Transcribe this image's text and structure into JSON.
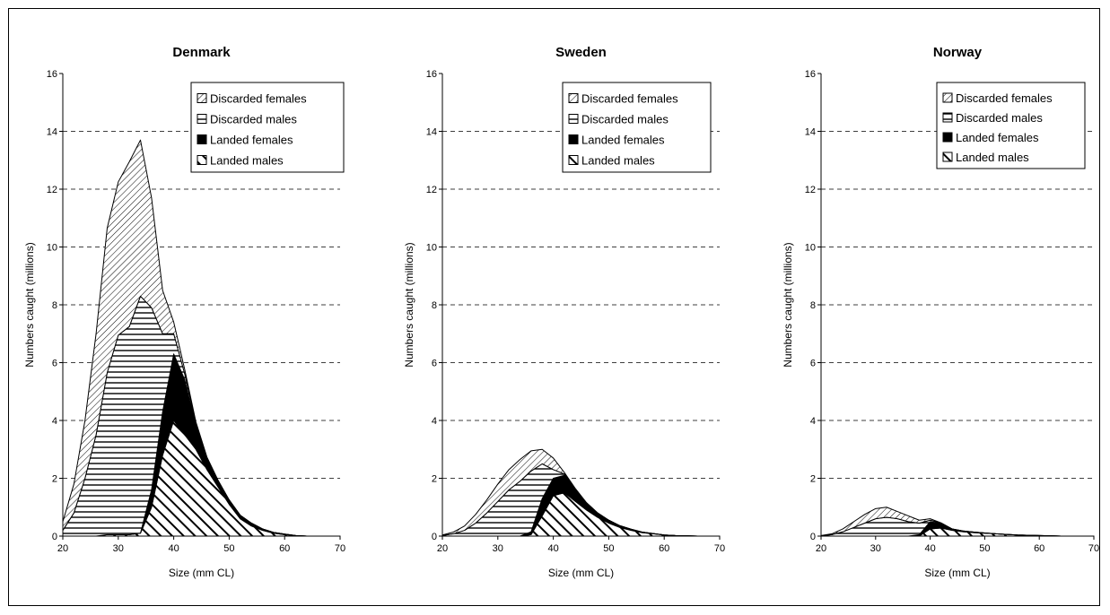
{
  "figure": {
    "colors": {
      "stroke": "#000000",
      "background": "#ffffff"
    }
  },
  "chart_data": [
    {
      "type": "area",
      "stacked": true,
      "title": "Denmark",
      "xlabel": "Size (mm CL)",
      "ylabel": "Numbers caught (millions)",
      "xlim": [
        20,
        70
      ],
      "ylim": [
        0,
        16
      ],
      "xticks": [
        20,
        30,
        40,
        50,
        60,
        70
      ],
      "yticks": [
        0,
        2,
        4,
        6,
        8,
        10,
        12,
        14,
        16
      ],
      "grid": "horizontal-dashed",
      "legend": "top-right",
      "x": [
        20,
        22,
        24,
        26,
        28,
        30,
        32,
        34,
        36,
        38,
        40,
        42,
        44,
        46,
        48,
        50,
        52,
        54,
        56,
        58,
        60,
        62,
        64,
        66,
        68,
        70
      ],
      "series": [
        {
          "name": "Landed males",
          "pattern": "diag-thick",
          "values": [
            0,
            0,
            0,
            0,
            0.05,
            0.05,
            0.05,
            0.1,
            1.0,
            2.8,
            4.0,
            3.5,
            3.0,
            2.3,
            1.7,
            1.1,
            0.6,
            0.35,
            0.2,
            0.1,
            0.05,
            0.02,
            0,
            0,
            0,
            0
          ]
        },
        {
          "name": "Landed females",
          "pattern": "solid",
          "values": [
            0,
            0,
            0,
            0,
            0,
            0,
            0,
            0,
            0.6,
            1.5,
            2.3,
            1.9,
            0.8,
            0.35,
            0.2,
            0.15,
            0.12,
            0.1,
            0.05,
            0.03,
            0.02,
            0,
            0,
            0,
            0,
            0
          ]
        },
        {
          "name": "Discarded males",
          "pattern": "horizontal",
          "values": [
            0.2,
            0.8,
            2.0,
            3.5,
            5.6,
            6.9,
            7.2,
            8.2,
            6.3,
            2.7,
            0.7,
            0.2,
            0.1,
            0.05,
            0.02,
            0,
            0,
            0,
            0,
            0,
            0,
            0,
            0,
            0,
            0,
            0
          ]
        },
        {
          "name": "Discarded females",
          "pattern": "diag-fine",
          "values": [
            0.3,
            1.0,
            2.0,
            3.5,
            5.0,
            5.3,
            5.7,
            5.4,
            3.8,
            1.5,
            0.4,
            0.15,
            0.05,
            0.03,
            0.01,
            0,
            0,
            0,
            0,
            0,
            0,
            0,
            0,
            0,
            0,
            0
          ]
        }
      ]
    },
    {
      "type": "area",
      "stacked": true,
      "title": "Sweden",
      "xlabel": "Size (mm CL)",
      "ylabel": "Numbers caught (millions)",
      "xlim": [
        20,
        70
      ],
      "ylim": [
        0,
        16
      ],
      "xticks": [
        20,
        30,
        40,
        50,
        60,
        70
      ],
      "yticks": [
        0,
        2,
        4,
        6,
        8,
        10,
        12,
        14,
        16
      ],
      "grid": "horizontal-dashed",
      "legend": "top-right",
      "x": [
        20,
        22,
        24,
        26,
        28,
        30,
        32,
        34,
        36,
        38,
        40,
        42,
        44,
        46,
        48,
        50,
        52,
        54,
        56,
        58,
        60,
        62,
        64,
        66,
        68,
        70
      ],
      "series": [
        {
          "name": "Landed males",
          "pattern": "diag-thick",
          "values": [
            0,
            0,
            0,
            0,
            0,
            0,
            0,
            0,
            0.05,
            0.7,
            1.4,
            1.5,
            1.2,
            0.9,
            0.65,
            0.45,
            0.3,
            0.2,
            0.12,
            0.08,
            0.04,
            0.02,
            0.01,
            0,
            0,
            0
          ]
        },
        {
          "name": "Landed females",
          "pattern": "solid",
          "values": [
            0,
            0,
            0,
            0,
            0,
            0,
            0,
            0,
            0.1,
            0.6,
            0.6,
            0.6,
            0.4,
            0.25,
            0.15,
            0.1,
            0.06,
            0.04,
            0.02,
            0.01,
            0,
            0,
            0,
            0,
            0,
            0
          ]
        },
        {
          "name": "Discarded males",
          "pattern": "horizontal",
          "values": [
            0.02,
            0.08,
            0.2,
            0.45,
            0.8,
            1.2,
            1.6,
            1.9,
            2.1,
            1.2,
            0.3,
            0.05,
            0.02,
            0,
            0,
            0,
            0,
            0,
            0,
            0,
            0,
            0,
            0,
            0,
            0,
            0
          ]
        },
        {
          "name": "Discarded females",
          "pattern": "diag-fine",
          "values": [
            0.02,
            0.06,
            0.15,
            0.3,
            0.45,
            0.6,
            0.7,
            0.75,
            0.7,
            0.5,
            0.4,
            0.05,
            0.02,
            0,
            0,
            0,
            0,
            0,
            0,
            0,
            0,
            0,
            0,
            0,
            0,
            0
          ]
        }
      ]
    },
    {
      "type": "area",
      "stacked": true,
      "title": "Norway",
      "xlabel": "Size (mm CL)",
      "ylabel": "Numbers caught (millions)",
      "xlim": [
        20,
        70
      ],
      "ylim": [
        0,
        16
      ],
      "xticks": [
        20,
        30,
        40,
        50,
        60,
        70
      ],
      "yticks": [
        0,
        2,
        4,
        6,
        8,
        10,
        12,
        14,
        16
      ],
      "grid": "horizontal-dashed",
      "legend": "top-right",
      "x": [
        20,
        22,
        24,
        26,
        28,
        30,
        32,
        34,
        36,
        38,
        40,
        42,
        44,
        46,
        48,
        50,
        52,
        54,
        56,
        58,
        60,
        62,
        64,
        66,
        68,
        70
      ],
      "series": [
        {
          "name": "Landed males",
          "pattern": "diag-thick",
          "values": [
            0,
            0,
            0,
            0,
            0,
            0,
            0,
            0,
            0,
            0,
            0.25,
            0.28,
            0.2,
            0.15,
            0.12,
            0.1,
            0.08,
            0.06,
            0.04,
            0.03,
            0.02,
            0.01,
            0,
            0,
            0,
            0
          ]
        },
        {
          "name": "Landed females",
          "pattern": "solid",
          "values": [
            0,
            0,
            0,
            0,
            0,
            0,
            0,
            0,
            0,
            0.05,
            0.25,
            0.15,
            0.05,
            0.03,
            0.02,
            0.01,
            0,
            0,
            0,
            0,
            0,
            0,
            0,
            0,
            0,
            0
          ]
        },
        {
          "name": "Discarded males",
          "pattern": "horizontal",
          "values": [
            0.01,
            0.05,
            0.15,
            0.3,
            0.45,
            0.6,
            0.65,
            0.6,
            0.5,
            0.4,
            0.05,
            0.02,
            0,
            0,
            0,
            0,
            0,
            0,
            0,
            0,
            0,
            0,
            0,
            0,
            0,
            0
          ]
        },
        {
          "name": "Discarded females",
          "pattern": "diag-fine",
          "values": [
            0.01,
            0.03,
            0.1,
            0.2,
            0.3,
            0.35,
            0.35,
            0.25,
            0.2,
            0.1,
            0.05,
            0.01,
            0,
            0,
            0,
            0,
            0,
            0,
            0,
            0,
            0,
            0,
            0,
            0,
            0,
            0
          ]
        }
      ]
    }
  ],
  "legend_order": [
    "Discarded females",
    "Discarded males",
    "Landed females",
    "Landed males"
  ]
}
